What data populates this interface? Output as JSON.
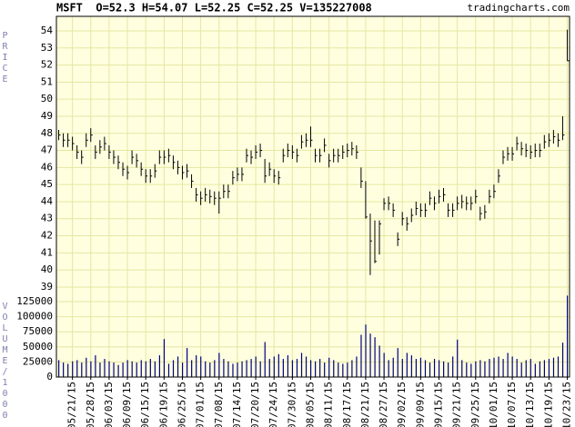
{
  "chart_data": {
    "type": "ohlc",
    "title": "MSFT  O=52.3 H=54.07 L=52.25 C=52.25 V=135227008",
    "source": "tradingcharts.com",
    "ylabel": "PRICE",
    "y2label": "VOLUME/1000",
    "grid": true,
    "background": "#ffffe0",
    "grid_color": "#e6e6a0",
    "price_color": "#000000",
    "volume_color": "#000080",
    "categories": [
      null,
      null,
      null,
      "05/21/15",
      null,
      null,
      null,
      "05/28/15",
      null,
      null,
      null,
      "06/03/15",
      null,
      null,
      null,
      "06/09/15",
      null,
      null,
      null,
      "06/15/15",
      null,
      null,
      null,
      "06/19/15",
      null,
      null,
      null,
      "06/25/15",
      null,
      null,
      null,
      "07/01/15",
      null,
      null,
      null,
      "07/08/15",
      null,
      null,
      null,
      "07/14/15",
      null,
      null,
      null,
      "07/20/15",
      null,
      null,
      null,
      "07/24/15",
      null,
      null,
      null,
      "07/30/15",
      null,
      null,
      null,
      "08/05/15",
      null,
      null,
      null,
      "08/11/15",
      null,
      null,
      null,
      "08/17/15",
      null,
      null,
      null,
      "08/21/15",
      null,
      null,
      null,
      "08/27/15",
      null,
      null,
      null,
      "09/02/15",
      null,
      null,
      null,
      "09/09/15",
      null,
      null,
      null,
      "09/15/15",
      null,
      null,
      null,
      "09/21/15",
      null,
      null,
      null,
      "09/25/15",
      null,
      null,
      null,
      "10/01/15",
      null,
      null,
      null,
      "10/07/15",
      null,
      null,
      null,
      "10/13/15",
      null,
      null,
      null,
      "10/19/15",
      null,
      null,
      null,
      "10/23/15"
    ],
    "high": [
      48.2,
      48.0,
      48.0,
      47.8,
      47.3,
      47.0,
      48.0,
      48.3,
      47.3,
      47.6,
      47.8,
      47.3,
      47.0,
      46.7,
      46.3,
      46.1,
      47.0,
      46.8,
      46.3,
      45.9,
      45.9,
      46.2,
      47.0,
      47.0,
      47.1,
      46.7,
      46.4,
      46.1,
      46.2,
      45.6,
      44.8,
      44.6,
      44.8,
      44.7,
      44.6,
      44.6,
      45.0,
      45.0,
      45.8,
      46.0,
      46.0,
      47.1,
      47.0,
      47.3,
      47.4,
      46.5,
      46.3,
      45.9,
      45.8,
      47.1,
      47.4,
      47.3,
      47.1,
      47.9,
      48.0,
      48.4,
      47.1,
      47.1,
      47.7,
      46.8,
      47.1,
      47.1,
      47.3,
      47.4,
      47.5,
      47.3,
      46.0,
      45.2,
      43.3,
      42.9,
      42.9,
      44.2,
      44.3,
      43.9,
      42.2,
      43.4,
      43.1,
      43.6,
      44.0,
      43.9,
      43.9,
      44.6,
      44.3,
      44.7,
      44.8,
      43.9,
      43.9,
      44.3,
      44.4,
      44.3,
      44.3,
      44.7,
      43.7,
      43.8,
      44.7,
      45.0,
      45.9,
      47.0,
      47.2,
      47.2,
      47.8,
      47.5,
      47.4,
      47.3,
      47.4,
      47.4,
      47.9,
      48.0,
      48.2,
      48.0,
      49.0,
      54.07
    ],
    "low": [
      47.6,
      47.2,
      47.2,
      47.0,
      46.5,
      46.2,
      47.2,
      47.5,
      46.5,
      46.8,
      47.0,
      46.5,
      46.2,
      45.9,
      45.5,
      45.3,
      46.2,
      46.0,
      45.5,
      45.1,
      45.1,
      45.4,
      46.2,
      46.2,
      46.3,
      45.9,
      45.6,
      45.3,
      45.4,
      44.8,
      44.0,
      43.8,
      44.0,
      43.9,
      43.8,
      43.3,
      44.2,
      44.2,
      45.0,
      45.2,
      45.2,
      46.3,
      46.2,
      46.5,
      46.6,
      45.1,
      45.5,
      45.1,
      45.0,
      46.3,
      46.6,
      46.5,
      46.3,
      47.1,
      47.2,
      47.2,
      46.3,
      46.3,
      46.9,
      46.0,
      46.3,
      46.3,
      46.5,
      46.6,
      46.7,
      46.5,
      44.8,
      43.0,
      39.7,
      40.4,
      40.9,
      43.5,
      43.5,
      43.1,
      41.4,
      42.6,
      42.3,
      42.8,
      43.2,
      43.1,
      43.1,
      43.8,
      43.5,
      43.9,
      44.0,
      43.1,
      43.1,
      43.5,
      43.6,
      43.5,
      43.5,
      43.9,
      42.9,
      43.0,
      43.9,
      44.2,
      45.1,
      46.2,
      46.4,
      46.4,
      47.0,
      46.7,
      46.6,
      46.5,
      46.6,
      46.6,
      47.1,
      47.2,
      47.4,
      47.2,
      47.6,
      52.25
    ],
    "close": [
      47.9,
      47.6,
      47.6,
      47.4,
      46.9,
      46.6,
      47.6,
      47.9,
      46.9,
      47.2,
      47.4,
      46.9,
      46.6,
      46.3,
      45.9,
      45.7,
      46.6,
      46.4,
      45.9,
      45.5,
      45.5,
      45.8,
      46.6,
      46.6,
      46.7,
      46.3,
      46.0,
      45.7,
      45.8,
      45.2,
      44.4,
      44.2,
      44.4,
      44.3,
      44.2,
      44.2,
      44.6,
      44.6,
      45.4,
      45.6,
      45.6,
      46.7,
      46.6,
      46.9,
      47.0,
      45.5,
      45.9,
      45.5,
      45.4,
      46.7,
      47.0,
      46.9,
      46.7,
      47.5,
      47.6,
      47.6,
      46.7,
      46.7,
      47.3,
      46.4,
      46.7,
      46.7,
      46.9,
      47.0,
      47.1,
      46.9,
      45.2,
      43.1,
      41.7,
      40.5,
      42.7,
      43.9,
      43.9,
      43.5,
      41.8,
      43.0,
      42.7,
      43.2,
      43.6,
      43.5,
      43.5,
      44.2,
      43.9,
      44.3,
      44.4,
      43.5,
      43.5,
      43.9,
      44.0,
      43.9,
      43.9,
      44.3,
      43.3,
      43.4,
      44.3,
      44.6,
      45.5,
      46.6,
      46.8,
      46.8,
      47.4,
      47.1,
      47.0,
      46.9,
      47.0,
      47.0,
      47.5,
      47.6,
      47.8,
      47.6,
      47.9,
      52.25
    ],
    "volume": [
      28000,
      24000,
      22000,
      26000,
      28000,
      24000,
      32000,
      26000,
      36000,
      24000,
      30000,
      26000,
      24000,
      20000,
      24000,
      28000,
      26000,
      24000,
      28000,
      26000,
      30000,
      26000,
      36000,
      63000,
      22000,
      28000,
      34000,
      24000,
      48000,
      28000,
      36000,
      34000,
      26000,
      24000,
      28000,
      40000,
      30000,
      26000,
      22000,
      24000,
      26000,
      28000,
      30000,
      34000,
      26000,
      58000,
      30000,
      34000,
      38000,
      30000,
      36000,
      28000,
      30000,
      40000,
      34000,
      28000,
      26000,
      30000,
      24000,
      32000,
      28000,
      24000,
      22000,
      24000,
      28000,
      34000,
      70000,
      87000,
      72000,
      66000,
      52000,
      40000,
      28000,
      32000,
      48000,
      30000,
      40000,
      36000,
      30000,
      32000,
      28000,
      24000,
      30000,
      28000,
      26000,
      24000,
      34000,
      62000,
      28000,
      24000,
      22000,
      26000,
      28000,
      26000,
      30000,
      32000,
      34000,
      30000,
      40000,
      34000,
      30000,
      24000,
      28000,
      30000,
      22000,
      26000,
      28000,
      30000,
      32000,
      34000,
      57000,
      135000
    ],
    "ylim": [
      33.73,
      54.85
    ],
    "yticks": [
      39,
      40,
      41,
      42,
      43,
      44,
      45,
      46,
      47,
      48,
      49,
      50,
      51,
      52,
      53,
      54
    ],
    "y2lim": [
      0,
      597900
    ],
    "y2ticks": [
      0,
      25000,
      50000,
      75000,
      100000,
      125000
    ]
  }
}
